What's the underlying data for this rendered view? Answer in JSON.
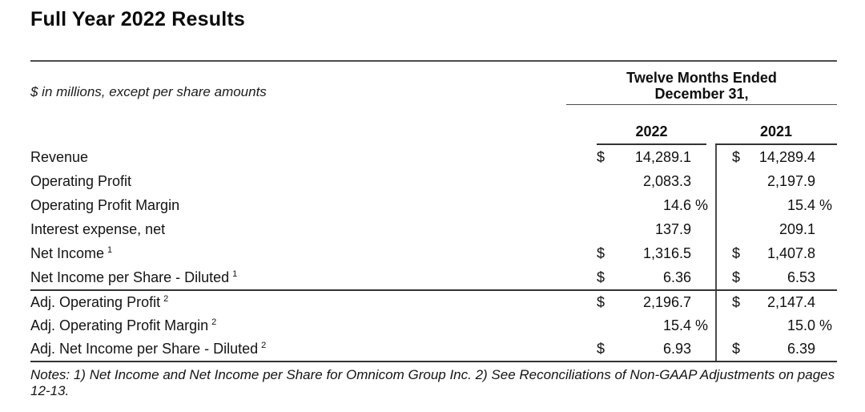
{
  "header": {
    "title": "Full Year 2022 Results",
    "units_note": "$ in millions, except per share amounts",
    "period_line1": "Twelve Months Ended",
    "period_line2": "December 31,"
  },
  "table": {
    "columns": [
      "2022",
      "2021"
    ],
    "sections": [
      {
        "name": "reported-results",
        "rows": [
          {
            "label": "Revenue",
            "sup": "",
            "cells": [
              {
                "cur": "$",
                "val": "14,289.1",
                "pct": ""
              },
              {
                "cur": "$",
                "val": "14,289.4",
                "pct": ""
              }
            ]
          },
          {
            "label": "Operating Profit",
            "sup": "",
            "cells": [
              {
                "cur": "",
                "val": "2,083.3",
                "pct": ""
              },
              {
                "cur": "",
                "val": "2,197.9",
                "pct": ""
              }
            ]
          },
          {
            "label": "Operating Profit Margin",
            "sup": "",
            "cells": [
              {
                "cur": "",
                "val": "14.6",
                "pct": "%"
              },
              {
                "cur": "",
                "val": "15.4",
                "pct": "%"
              }
            ]
          },
          {
            "label": "Interest expense, net",
            "sup": "",
            "cells": [
              {
                "cur": "",
                "val": "137.9",
                "pct": ""
              },
              {
                "cur": "",
                "val": "209.1",
                "pct": ""
              }
            ]
          },
          {
            "label": "Net Income",
            "sup": "1",
            "cells": [
              {
                "cur": "$",
                "val": "1,316.5",
                "pct": ""
              },
              {
                "cur": "$",
                "val": "1,407.8",
                "pct": ""
              }
            ]
          },
          {
            "label": "Net Income per Share - Diluted",
            "sup": "1",
            "cells": [
              {
                "cur": "$",
                "val": "6.36",
                "pct": ""
              },
              {
                "cur": "$",
                "val": "6.53",
                "pct": ""
              }
            ]
          }
        ]
      },
      {
        "name": "adjusted-results",
        "rows": [
          {
            "label": "Adj. Operating Profit",
            "sup": "2",
            "cells": [
              {
                "cur": "$",
                "val": "2,196.7",
                "pct": ""
              },
              {
                "cur": "$",
                "val": "2,147.4",
                "pct": ""
              }
            ]
          },
          {
            "label": "Adj. Operating Profit Margin",
            "sup": "2",
            "cells": [
              {
                "cur": "",
                "val": "15.4",
                "pct": "%"
              },
              {
                "cur": "",
                "val": "15.0",
                "pct": "%"
              }
            ]
          },
          {
            "label": "Adj. Net Income per Share - Diluted",
            "sup": "2",
            "cells": [
              {
                "cur": "$",
                "val": "6.93",
                "pct": ""
              },
              {
                "cur": "$",
                "val": "6.39",
                "pct": ""
              }
            ]
          }
        ]
      }
    ]
  },
  "footnote": {
    "lines": [
      "Notes: 1) Net Income and Net Income per Share for Omnicom Group Inc. 2) See Reconciliations of Non-GAAP Adjustments on pages",
      "12-13."
    ]
  },
  "colors": {
    "text": "#111111",
    "rule_light": "#4c4c4c",
    "rule_dark": "#333333",
    "background": "#ffffff"
  }
}
